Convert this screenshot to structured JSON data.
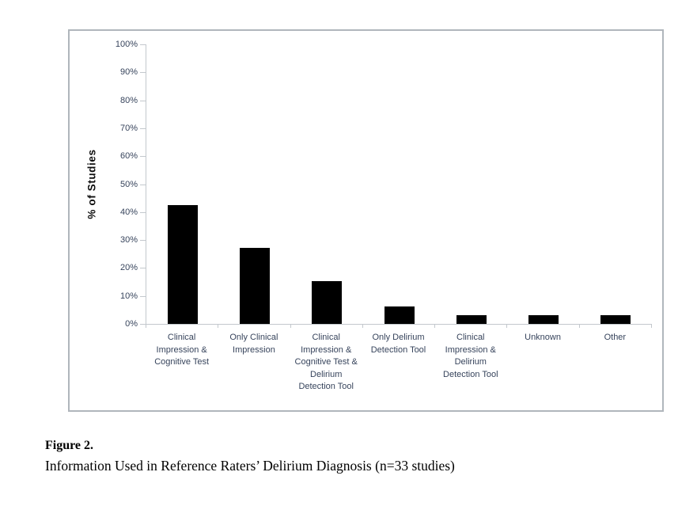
{
  "chart_data": {
    "type": "bar",
    "title": "",
    "xlabel": "",
    "ylabel": "% of Studies",
    "ylim": [
      0,
      100
    ],
    "ytick_step": 10,
    "ytick_suffix": "%",
    "grid": false,
    "legend_position": "none",
    "bar_color": "#000000",
    "axis_color": "#c3c8cd",
    "tick_label_color": "#37445c",
    "categories": [
      "Clinical Impression & Cognitive Test",
      "Only Clinical Impression",
      "Clinical Impression & Cognitive Test & Delirium Detection Tool",
      "Only Delirium Detection Tool",
      "Clinical Impression & Delirium Detection Tool",
      "Unknown",
      "Other"
    ],
    "category_label_lines": [
      [
        "Clinical",
        "Impression &",
        "Cognitive Test"
      ],
      [
        "Only Clinical",
        "Impression"
      ],
      [
        "Clinical",
        "Impression &",
        "Cognitive Test &",
        "Delirium",
        "Detection Tool"
      ],
      [
        "Only Delirium",
        "Detection Tool"
      ],
      [
        "Clinical",
        "Impression &",
        "Delirium",
        "Detection Tool"
      ],
      [
        "Unknown"
      ],
      [
        "Other"
      ]
    ],
    "values": [
      42.4,
      27.3,
      15.2,
      6.1,
      3.0,
      3.0,
      3.0
    ]
  },
  "caption": {
    "label": "Figure 2.",
    "text": "Information Used in Reference Raters’ Delirium Diagnosis (n=33 studies)"
  },
  "colors": {
    "bar": "#000000",
    "axis": "#c3c8cd",
    "tick_label": "#37445c",
    "frame_border": "#b0b6bc"
  }
}
